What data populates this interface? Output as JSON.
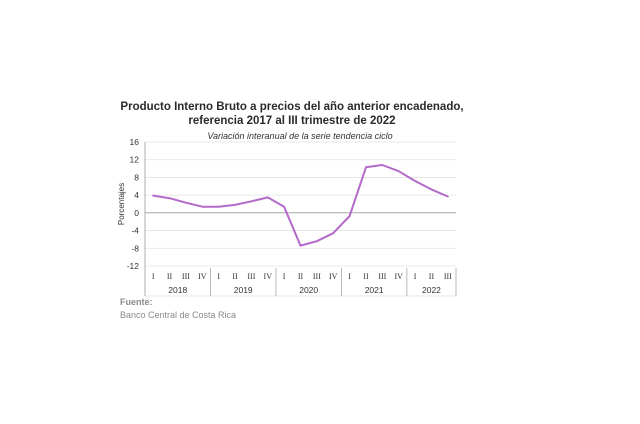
{
  "chart_data": {
    "type": "line",
    "title_line1": "Producto Interno Bruto a precios del año anterior encadenado,",
    "title_line2": "referencia 2017 al III trimestre de 2022",
    "subtitle": "Variación interanual de la serie tendencia ciclo",
    "ylabel": "Porcentajes",
    "xlabel": "",
    "ylim": [
      -12,
      16
    ],
    "yticks": [
      "16",
      "12",
      "8",
      "4",
      "0",
      "-4",
      "-8",
      "-12"
    ],
    "grid": true,
    "legend": "none",
    "line_color": "#b36ac8",
    "quarter_labels": [
      "I",
      "II",
      "III",
      "IV",
      "I",
      "II",
      "III",
      "IV",
      "I",
      "II",
      "III",
      "IV",
      "I",
      "II",
      "III",
      "IV",
      "I",
      "II",
      "III"
    ],
    "years": [
      "2018",
      "2019",
      "2020",
      "2021",
      "2022"
    ],
    "series": [
      {
        "values": [
          3.9,
          3.3,
          2.3,
          1.4,
          1.4,
          1.8,
          2.6,
          3.5,
          1.4,
          -7.4,
          -6.4,
          -4.6,
          -0.7,
          10.3,
          10.8,
          9.4,
          7.2,
          5.3,
          3.7
        ]
      }
    ]
  },
  "source": {
    "label": "Fuente:",
    "text": "Banco Central de Costa Rica"
  }
}
